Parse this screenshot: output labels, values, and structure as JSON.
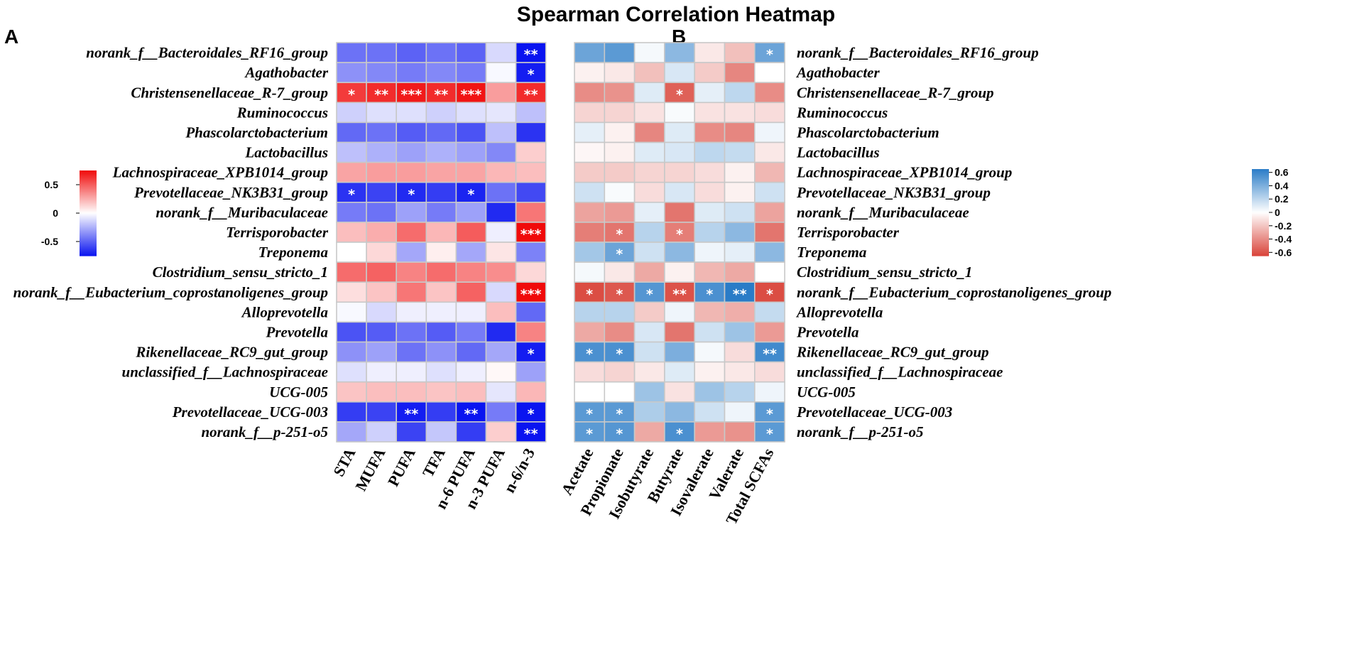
{
  "title": "Spearman Correlation Heatmap",
  "panels": {
    "a": "A",
    "b": "B"
  },
  "colors": {
    "a_neg": "#0a14f0",
    "a_mid": "#ffffff",
    "a_pos": "#f00a0a",
    "b_neg": "#d9443a",
    "b_mid": "#ffffff",
    "b_pos": "#2a7cc7",
    "cell_border": "#c8c8c8",
    "star": "#ffffff"
  },
  "chart_data": [
    {
      "type": "heatmap",
      "panel": "A",
      "title": "Spearman Correlation Heatmap",
      "rows": [
        "norank_f__Bacteroidales_RF16_group",
        "Agathobacter",
        "Christensenellaceae_R-7_group",
        "Ruminococcus",
        "Phascolarctobacterium",
        "Lactobacillus",
        "Lachnospiraceae_XPB1014_group",
        "Prevotellaceae_NK3B31_group",
        "norank_f__Muribaculaceae",
        "Terrisporobacter",
        "Treponema",
        "Clostridium_sensu_stricto_1",
        "norank_f__Eubacterium_coprostanoligenes_group",
        "Alloprevotella",
        "Prevotella",
        "Rikenellaceae_RC9_gut_group",
        "unclassified_f__Lachnospiraceae",
        "UCG-005",
        "Prevotellaceae_UCG-003",
        "norank_f__p-251-o5"
      ],
      "columns": [
        "STA",
        "MUFA",
        "PUFA",
        "TFA",
        "n-6 PUFA",
        "n-3 PUFA",
        "n-6/n-3"
      ],
      "values": [
        [
          -0.45,
          -0.45,
          -0.5,
          -0.45,
          -0.5,
          -0.12,
          -0.8
        ],
        [
          -0.35,
          -0.38,
          -0.42,
          -0.38,
          -0.42,
          -0.02,
          -0.72
        ],
        [
          0.6,
          0.65,
          0.7,
          0.65,
          0.72,
          0.3,
          0.65
        ],
        [
          -0.15,
          -0.1,
          -0.1,
          -0.15,
          -0.1,
          -0.08,
          -0.2
        ],
        [
          -0.48,
          -0.45,
          -0.52,
          -0.48,
          -0.55,
          -0.2,
          -0.65
        ],
        [
          -0.2,
          -0.25,
          -0.3,
          -0.25,
          -0.3,
          -0.38,
          0.15
        ],
        [
          0.28,
          0.3,
          0.3,
          0.28,
          0.28,
          0.22,
          0.2
        ],
        [
          -0.65,
          -0.6,
          -0.68,
          -0.62,
          -0.7,
          -0.45,
          -0.58
        ],
        [
          -0.42,
          -0.45,
          -0.3,
          -0.42,
          -0.3,
          -0.68,
          0.42
        ],
        [
          0.2,
          0.25,
          0.45,
          0.22,
          0.5,
          -0.05,
          0.85
        ],
        [
          0.0,
          0.12,
          -0.28,
          0.05,
          -0.28,
          0.08,
          -0.4
        ],
        [
          0.45,
          0.48,
          0.38,
          0.45,
          0.38,
          0.35,
          0.12
        ],
        [
          0.1,
          0.18,
          0.42,
          0.18,
          0.48,
          -0.12,
          0.9
        ],
        [
          -0.02,
          -0.12,
          -0.05,
          -0.05,
          -0.05,
          0.2,
          -0.48
        ],
        [
          -0.55,
          -0.52,
          -0.45,
          -0.52,
          -0.42,
          -0.68,
          0.38
        ],
        [
          -0.35,
          -0.3,
          -0.45,
          -0.35,
          -0.48,
          -0.28,
          -0.72
        ],
        [
          -0.1,
          -0.05,
          -0.05,
          -0.1,
          -0.05,
          0.02,
          -0.3
        ],
        [
          0.18,
          0.2,
          0.2,
          0.18,
          0.2,
          -0.08,
          0.22
        ],
        [
          -0.62,
          -0.6,
          -0.72,
          -0.62,
          -0.75,
          -0.42,
          -0.75
        ],
        [
          -0.28,
          -0.15,
          -0.6,
          -0.18,
          -0.62,
          0.15,
          -0.88
        ]
      ],
      "stars": [
        [
          "",
          "",
          "",
          "",
          "",
          "",
          "**"
        ],
        [
          "",
          "",
          "",
          "",
          "",
          "",
          "*"
        ],
        [
          "*",
          "**",
          "***",
          "**",
          "***",
          "",
          "**"
        ],
        [
          "",
          "",
          "",
          "",
          "",
          "",
          ""
        ],
        [
          "",
          "",
          "",
          "",
          "",
          "",
          ""
        ],
        [
          "",
          "",
          "",
          "",
          "",
          "",
          ""
        ],
        [
          "",
          "",
          "",
          "",
          "",
          "",
          ""
        ],
        [
          "*",
          "",
          "*",
          "",
          "*",
          "",
          ""
        ],
        [
          "",
          "",
          "",
          "",
          "",
          "",
          ""
        ],
        [
          "",
          "",
          "",
          "",
          "",
          "",
          "***"
        ],
        [
          "",
          "",
          "",
          "",
          "",
          "",
          ""
        ],
        [
          "",
          "",
          "",
          "",
          "",
          "",
          ""
        ],
        [
          "",
          "",
          "",
          "",
          "",
          "",
          "***"
        ],
        [
          "",
          "",
          "",
          "",
          "",
          "",
          ""
        ],
        [
          "",
          "",
          "",
          "",
          "",
          "",
          ""
        ],
        [
          "",
          "",
          "",
          "",
          "",
          "",
          "*"
        ],
        [
          "",
          "",
          "",
          "",
          "",
          "",
          ""
        ],
        [
          "",
          "",
          "",
          "",
          "",
          "",
          ""
        ],
        [
          "",
          "",
          "**",
          "",
          "**",
          "",
          "*"
        ],
        [
          "",
          "",
          "",
          "",
          "",
          "",
          "**"
        ]
      ],
      "legend": {
        "range": [
          -0.75,
          0.75
        ],
        "ticks": [
          0.5,
          0,
          -0.5
        ],
        "tick_labels": [
          "0.5",
          "0",
          "-0.5"
        ],
        "placement": "left"
      }
    },
    {
      "type": "heatmap",
      "panel": "B",
      "rows": [
        "norank_f__Bacteroidales_RF16_group",
        "Agathobacter",
        "Christensenellaceae_R-7_group",
        "Ruminococcus",
        "Phascolarctobacterium",
        "Lactobacillus",
        "Lachnospiraceae_XPB1014_group",
        "Prevotellaceae_NK3B31_group",
        "norank_f__Muribaculaceae",
        "Terrisporobacter",
        "Treponema",
        "Clostridium_sensu_stricto_1",
        "norank_f__Eubacterium_coprostanoligenes_group",
        "Alloprevotella",
        "Prevotella",
        "Rikenellaceae_RC9_gut_group",
        "unclassified_f__Lachnospiraceae",
        "UCG-005",
        "Prevotellaceae_UCG-003",
        "norank_f__p-251-o5"
      ],
      "columns": [
        "Acetate",
        "Propionate",
        "Isobutyrate",
        "Butyrate",
        "Isovalerate",
        "Valerate",
        "Total SCFAs"
      ],
      "values": [
        [
          0.45,
          0.5,
          0.03,
          0.35,
          -0.08,
          -0.22,
          0.45
        ],
        [
          -0.05,
          -0.08,
          -0.22,
          0.12,
          -0.18,
          -0.42,
          0.0
        ],
        [
          -0.4,
          -0.38,
          0.1,
          -0.55,
          0.08,
          0.2,
          -0.4
        ],
        [
          -0.15,
          -0.15,
          -0.1,
          0.02,
          -0.1,
          -0.1,
          -0.12
        ],
        [
          0.08,
          -0.05,
          -0.42,
          0.1,
          -0.4,
          -0.42,
          0.05
        ],
        [
          -0.03,
          -0.05,
          0.1,
          0.12,
          0.2,
          0.18,
          -0.08
        ],
        [
          -0.18,
          -0.18,
          -0.15,
          -0.15,
          -0.12,
          -0.05,
          -0.25
        ],
        [
          0.15,
          0.02,
          -0.12,
          0.12,
          -0.12,
          -0.05,
          0.15
        ],
        [
          -0.32,
          -0.35,
          0.08,
          -0.48,
          0.1,
          0.15,
          -0.32
        ],
        [
          -0.45,
          -0.48,
          0.22,
          -0.45,
          0.22,
          0.35,
          -0.48
        ],
        [
          0.28,
          0.45,
          0.15,
          0.35,
          0.05,
          0.08,
          0.35
        ],
        [
          0.03,
          -0.08,
          -0.3,
          -0.05,
          -0.25,
          -0.3,
          0.0
        ],
        [
          -0.62,
          -0.58,
          0.52,
          -0.6,
          0.55,
          0.65,
          -0.62
        ],
        [
          0.22,
          0.22,
          -0.18,
          0.05,
          -0.25,
          -0.28,
          0.18
        ],
        [
          -0.3,
          -0.4,
          0.12,
          -0.48,
          0.15,
          0.3,
          -0.35
        ],
        [
          0.55,
          0.55,
          0.15,
          0.4,
          0.03,
          -0.12,
          0.58
        ],
        [
          -0.12,
          -0.15,
          -0.08,
          0.1,
          -0.05,
          -0.08,
          -0.12
        ],
        [
          0.0,
          0.0,
          0.3,
          -0.1,
          0.3,
          0.22,
          0.05
        ],
        [
          0.5,
          0.5,
          0.25,
          0.35,
          0.15,
          0.05,
          0.5
        ],
        [
          0.5,
          0.52,
          -0.3,
          0.55,
          -0.35,
          -0.38,
          0.5
        ]
      ],
      "stars": [
        [
          "",
          "",
          "",
          "",
          "",
          "",
          "*"
        ],
        [
          "",
          "",
          "",
          "",
          "",
          "",
          ""
        ],
        [
          "",
          "",
          "",
          "*",
          "",
          "",
          ""
        ],
        [
          "",
          "",
          "",
          "",
          "",
          "",
          ""
        ],
        [
          "",
          "",
          "",
          "",
          "",
          "",
          ""
        ],
        [
          "",
          "",
          "",
          "",
          "",
          "",
          ""
        ],
        [
          "",
          "",
          "",
          "",
          "",
          "",
          ""
        ],
        [
          "",
          "",
          "",
          "",
          "",
          "",
          ""
        ],
        [
          "",
          "",
          "",
          "",
          "",
          "",
          ""
        ],
        [
          "",
          "*",
          "",
          "*",
          "",
          "",
          ""
        ],
        [
          "",
          "*",
          "",
          "",
          "",
          "",
          ""
        ],
        [
          "",
          "",
          "",
          "",
          "",
          "",
          ""
        ],
        [
          "*",
          "*",
          "*",
          "**",
          "*",
          "**",
          "*"
        ],
        [
          "",
          "",
          "",
          "",
          "",
          "",
          ""
        ],
        [
          "",
          "",
          "",
          "",
          "",
          "",
          ""
        ],
        [
          "*",
          "*",
          "",
          "",
          "",
          "",
          "**"
        ],
        [
          "",
          "",
          "",
          "",
          "",
          "",
          ""
        ],
        [
          "",
          "",
          "",
          "",
          "",
          "",
          ""
        ],
        [
          "*",
          "*",
          "",
          "",
          "",
          "",
          "*"
        ],
        [
          "*",
          "*",
          "",
          "*",
          "",
          "",
          "*"
        ]
      ],
      "legend": {
        "range": [
          -0.65,
          0.65
        ],
        "ticks": [
          0.6,
          0.4,
          0.2,
          0,
          -0.2,
          -0.4,
          -0.6
        ],
        "tick_labels": [
          "0.6",
          "0.4",
          "0.2",
          "0",
          "-0.2",
          "-0.4",
          "-0.6"
        ],
        "placement": "right"
      }
    }
  ]
}
